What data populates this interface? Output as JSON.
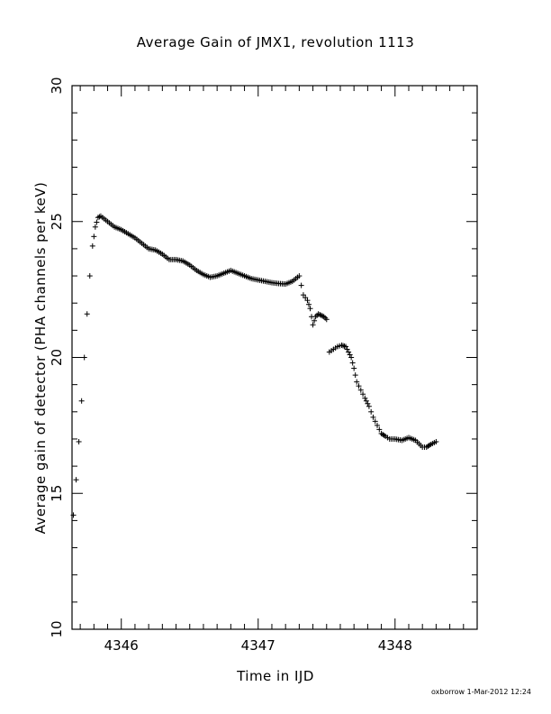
{
  "chart_data": {
    "type": "scatter",
    "title": "Average Gain of JMX1, revolution 1113",
    "xlabel": "Time in IJD",
    "ylabel": "Average gain of detector (PHA channels per keV)",
    "xlim": [
      4345.64,
      4348.6
    ],
    "ylim": [
      10,
      30
    ],
    "xticks": [
      4346,
      4347,
      4348
    ],
    "yticks": [
      10,
      15,
      20,
      25,
      30
    ],
    "marker": "+",
    "color": "#000000",
    "grid": false,
    "series": [
      {
        "x": [
          4345.65,
          4345.67,
          4345.69,
          4345.71,
          4345.73,
          4345.75,
          4345.77,
          4345.79,
          4345.81,
          4345.83,
          4345.85,
          4345.9,
          4345.95,
          4346.0,
          4346.05,
          4346.1,
          4346.15,
          4346.2,
          4346.25,
          4346.3,
          4346.35,
          4346.4,
          4346.45,
          4346.5,
          4346.55,
          4346.6,
          4346.65,
          4346.7,
          4346.75,
          4346.8,
          4346.85,
          4346.9,
          4346.95,
          4347.0,
          4347.05,
          4347.1,
          4347.15,
          4347.2,
          4347.25,
          4347.3,
          4347.33,
          4347.36,
          4347.38,
          4347.4,
          4347.42,
          4347.44,
          4347.46,
          4347.48,
          4347.5,
          4347.52,
          4347.55,
          4347.58,
          4347.61,
          4347.64,
          4347.66,
          4347.68,
          4347.7,
          4347.72,
          4347.75,
          4347.78,
          4347.81,
          4347.84,
          4347.87,
          4347.9,
          4347.93,
          4347.96,
          4348.0,
          4348.05,
          4348.1,
          4348.15,
          4348.2,
          4348.23,
          4348.26,
          4348.3
        ],
        "y": [
          14.2,
          15.5,
          16.9,
          18.4,
          20.0,
          21.6,
          23.0,
          24.1,
          24.8,
          25.15,
          25.2,
          25.0,
          24.8,
          24.7,
          24.55,
          24.4,
          24.2,
          24.0,
          23.95,
          23.8,
          23.6,
          23.6,
          23.55,
          23.4,
          23.2,
          23.05,
          22.95,
          23.0,
          23.1,
          23.2,
          23.1,
          23.0,
          22.9,
          22.85,
          22.8,
          22.75,
          22.72,
          22.7,
          22.8,
          23.0,
          22.3,
          22.1,
          21.8,
          21.2,
          21.5,
          21.6,
          21.55,
          21.5,
          21.4,
          20.2,
          20.3,
          20.4,
          20.45,
          20.4,
          20.2,
          20.0,
          19.6,
          19.1,
          18.8,
          18.5,
          18.2,
          17.8,
          17.5,
          17.2,
          17.1,
          17.0,
          17.0,
          16.95,
          17.05,
          16.95,
          16.7,
          16.7,
          16.8,
          16.9
        ]
      }
    ]
  },
  "footer": "oxborrow   1-Mar-2012 12:24"
}
